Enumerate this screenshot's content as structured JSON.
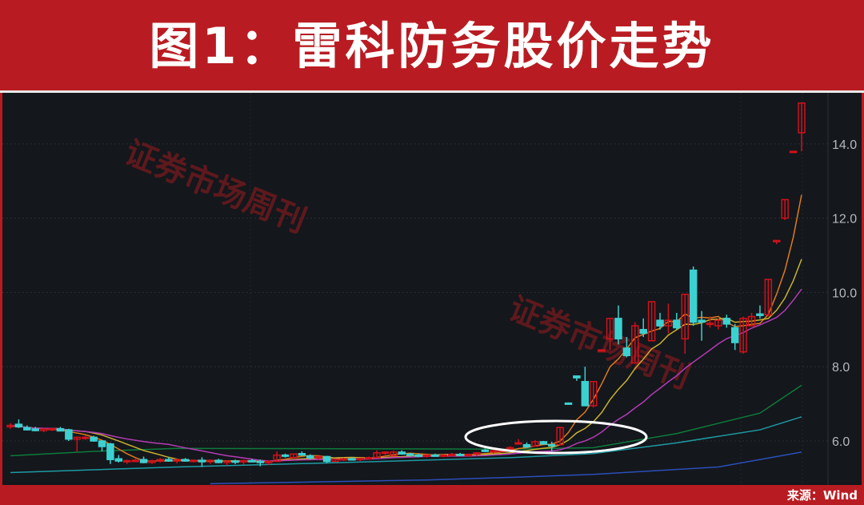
{
  "header": {
    "title": "图1：雷科防务股价走势"
  },
  "footer": {
    "source": "来源：Wind"
  },
  "watermark": "证券市场周刊",
  "colors": {
    "up": "#d0121b",
    "down": "#3cd1d1",
    "ma5": "#e07a1c",
    "ma10": "#c9b22f",
    "ma20": "#b43bb5",
    "ma_green": "#0e7a3c",
    "ma_teal": "#1f9aa3",
    "ma_blue": "#2b4fb8",
    "banner": "#b81c22",
    "background": "#14171c",
    "highlight": "#ffffff"
  },
  "chart_data": {
    "type": "candlestick",
    "title": "图1：雷科防务股价走势",
    "ylim": [
      4.75,
      15.3
    ],
    "yticks": [
      "6.0",
      "8.0",
      "10.0",
      "12.0",
      "14.0"
    ],
    "grid": true,
    "ohlc": [
      [
        6.38,
        6.48,
        6.33,
        6.42
      ],
      [
        6.45,
        6.58,
        6.35,
        6.38
      ],
      [
        6.36,
        6.42,
        6.28,
        6.3
      ],
      [
        6.32,
        6.38,
        6.26,
        6.28
      ],
      [
        6.28,
        6.34,
        6.24,
        6.32
      ],
      [
        6.3,
        6.36,
        6.27,
        6.33
      ],
      [
        6.33,
        6.38,
        6.26,
        6.27
      ],
      [
        6.3,
        6.33,
        6.0,
        6.05
      ],
      [
        6.05,
        6.12,
        5.72,
        6.1
      ],
      [
        6.08,
        6.14,
        6.03,
        6.1
      ],
      [
        6.1,
        6.14,
        5.98,
        6.0
      ],
      [
        6.0,
        6.02,
        5.72,
        5.85
      ],
      [
        5.92,
        5.95,
        5.38,
        5.5
      ],
      [
        5.52,
        5.62,
        5.42,
        5.46
      ],
      [
        5.45,
        5.5,
        5.38,
        5.47
      ],
      [
        5.47,
        5.52,
        5.43,
        5.48
      ],
      [
        5.5,
        5.58,
        5.4,
        5.42
      ],
      [
        5.42,
        5.5,
        5.38,
        5.46
      ],
      [
        5.46,
        5.54,
        5.42,
        5.5
      ],
      [
        5.5,
        5.56,
        5.44,
        5.46
      ],
      [
        5.46,
        5.52,
        5.4,
        5.5
      ],
      [
        5.5,
        5.54,
        5.44,
        5.46
      ],
      [
        5.46,
        5.5,
        5.42,
        5.48
      ],
      [
        5.48,
        5.56,
        5.3,
        5.44
      ],
      [
        5.44,
        5.5,
        5.38,
        5.48
      ],
      [
        5.48,
        5.52,
        5.4,
        5.42
      ],
      [
        5.42,
        5.48,
        5.34,
        5.46
      ],
      [
        5.46,
        5.5,
        5.38,
        5.44
      ],
      [
        5.44,
        5.5,
        5.36,
        5.47
      ],
      [
        5.47,
        5.52,
        5.43,
        5.45
      ],
      [
        5.45,
        5.5,
        5.32,
        5.42
      ],
      [
        5.42,
        5.48,
        5.36,
        5.45
      ],
      [
        5.45,
        5.72,
        5.44,
        5.62
      ],
      [
        5.62,
        5.66,
        5.55,
        5.6
      ],
      [
        5.55,
        5.66,
        5.52,
        5.65
      ],
      [
        5.66,
        5.72,
        5.6,
        5.62
      ],
      [
        5.6,
        5.64,
        5.5,
        5.55
      ],
      [
        5.55,
        5.6,
        5.5,
        5.58
      ],
      [
        5.58,
        5.6,
        5.4,
        5.45
      ],
      [
        5.45,
        5.52,
        5.44,
        5.5
      ],
      [
        5.5,
        5.55,
        5.46,
        5.52
      ],
      [
        5.52,
        5.56,
        5.48,
        5.5
      ],
      [
        5.5,
        5.54,
        5.46,
        5.53
      ],
      [
        5.53,
        5.58,
        5.5,
        5.55
      ],
      [
        5.55,
        5.75,
        5.55,
        5.68
      ],
      [
        5.68,
        5.72,
        5.62,
        5.7
      ],
      [
        5.6,
        5.74,
        5.58,
        5.7
      ],
      [
        5.7,
        5.75,
        5.63,
        5.65
      ],
      [
        5.65,
        5.68,
        5.58,
        5.62
      ],
      [
        5.62,
        5.66,
        5.56,
        5.6
      ],
      [
        5.6,
        5.64,
        5.55,
        5.62
      ],
      [
        5.62,
        5.66,
        5.58,
        5.6
      ],
      [
        5.6,
        5.64,
        5.56,
        5.62
      ],
      [
        5.62,
        5.68,
        5.58,
        5.64
      ],
      [
        5.64,
        5.68,
        5.6,
        5.62
      ],
      [
        5.62,
        5.66,
        5.58,
        5.64
      ],
      [
        5.66,
        5.7,
        5.6,
        5.68
      ],
      [
        5.75,
        5.8,
        5.7,
        5.72
      ],
      [
        5.72,
        5.76,
        5.66,
        5.74
      ],
      [
        5.72,
        5.78,
        5.68,
        5.75
      ],
      [
        5.8,
        5.86,
        5.76,
        5.82
      ],
      [
        5.95,
        6.05,
        5.92,
        5.95
      ],
      [
        5.9,
        5.96,
        5.82,
        5.84
      ],
      [
        5.86,
        6.02,
        5.86,
        5.98
      ],
      [
        5.98,
        6.0,
        5.9,
        5.92
      ],
      [
        5.9,
        5.98,
        5.72,
        5.88
      ],
      [
        5.9,
        6.38,
        5.88,
        6.36
      ],
      [
        7.02,
        7.04,
        6.98,
        7.0
      ],
      [
        7.75,
        7.75,
        7.62,
        7.7
      ],
      [
        7.6,
        8.0,
        6.95,
        6.95
      ],
      [
        6.95,
        7.6,
        6.9,
        7.6
      ],
      [
        8.43,
        8.47,
        8.4,
        8.45
      ],
      [
        8.75,
        9.3,
        8.45,
        9.3
      ],
      [
        9.3,
        9.65,
        8.6,
        8.75
      ],
      [
        8.5,
        8.8,
        8.25,
        8.3
      ],
      [
        8.1,
        9.2,
        8.1,
        9.1
      ],
      [
        9.0,
        9.3,
        8.8,
        8.9
      ],
      [
        8.7,
        9.75,
        8.7,
        9.75
      ],
      [
        9.25,
        9.45,
        9.0,
        9.1
      ],
      [
        9.1,
        9.7,
        8.9,
        9.25
      ],
      [
        9.25,
        9.45,
        9.0,
        9.05
      ],
      [
        8.75,
        9.95,
        8.35,
        9.95
      ],
      [
        10.6,
        10.7,
        9.1,
        9.2
      ],
      [
        9.25,
        9.5,
        8.7,
        9.2
      ],
      [
        9.15,
        9.35,
        9.05,
        9.17
      ],
      [
        9.1,
        9.3,
        9.0,
        9.25
      ],
      [
        9.3,
        9.4,
        9.05,
        9.15
      ],
      [
        9.05,
        9.15,
        8.45,
        8.65
      ],
      [
        8.4,
        9.35,
        8.35,
        9.3
      ],
      [
        9.1,
        9.45,
        9.1,
        9.35
      ],
      [
        9.42,
        9.65,
        9.3,
        9.38
      ],
      [
        9.4,
        10.35,
        9.35,
        10.35
      ],
      [
        11.4,
        11.4,
        11.3,
        11.4
      ],
      [
        12.0,
        12.5,
        11.95,
        12.5
      ],
      [
        13.8,
        13.8,
        13.8,
        13.8
      ],
      [
        14.3,
        15.1,
        13.8,
        15.1
      ]
    ],
    "moving_averages": [
      {
        "key": "ma5",
        "period": 5
      },
      {
        "key": "ma10",
        "period": 10
      },
      {
        "key": "ma20",
        "period": 20
      }
    ],
    "long_lines": [
      {
        "key": "ma_green",
        "points": [
          [
            0,
            5.6
          ],
          [
            10,
            5.72
          ],
          [
            20,
            5.8
          ],
          [
            40,
            5.79
          ],
          [
            60,
            5.78
          ],
          [
            70,
            5.82
          ],
          [
            80,
            6.2
          ],
          [
            90,
            6.75
          ],
          [
            95,
            7.5
          ]
        ]
      },
      {
        "key": "ma_teal",
        "points": [
          [
            0,
            5.15
          ],
          [
            20,
            5.3
          ],
          [
            40,
            5.42
          ],
          [
            60,
            5.55
          ],
          [
            70,
            5.66
          ],
          [
            80,
            5.95
          ],
          [
            90,
            6.3
          ],
          [
            95,
            6.65
          ]
        ]
      },
      {
        "key": "ma_blue",
        "points": [
          [
            24,
            4.85
          ],
          [
            50,
            4.95
          ],
          [
            60,
            5.02
          ],
          [
            70,
            5.1
          ],
          [
            85,
            5.3
          ],
          [
            95,
            5.7
          ]
        ]
      }
    ]
  }
}
